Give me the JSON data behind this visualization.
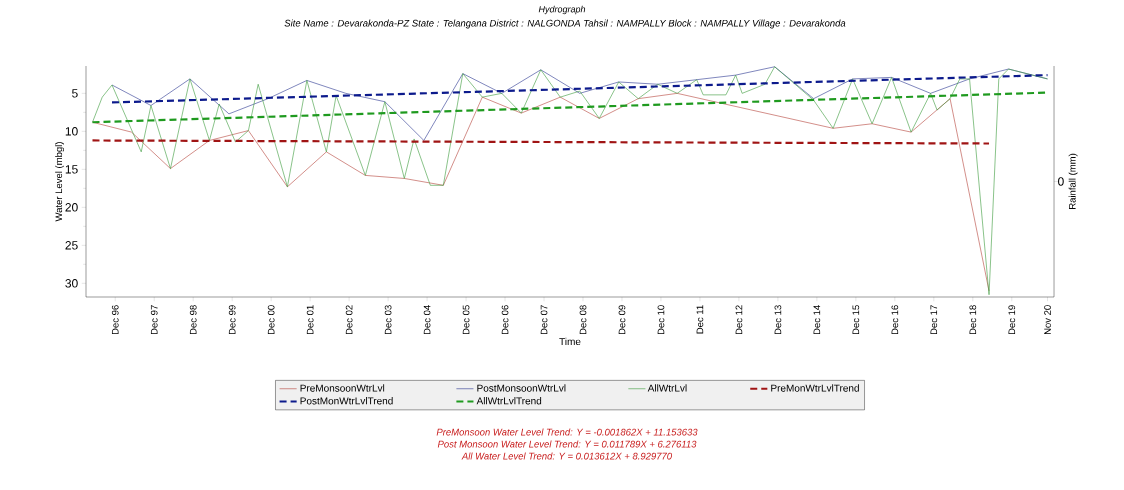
{
  "chart_data": {
    "type": "line",
    "title": "Hydrograph",
    "subtitle": "Site Name : Devarakonda-PZ  State : Telangana District : NALGONDA  Tahsil : NAMPALLY  Block : NAMPALLY Village : Devarakonda",
    "xlabel": "Time",
    "ylabel": "Water Level (mbgl)",
    "y2label": "Rainfall (mm)",
    "xlim": [
      "1996-03",
      "2021-01"
    ],
    "xticks": [
      {
        "value": "1996-12",
        "label": "Dec 96"
      },
      {
        "value": "1997-12",
        "label": "Dec 97"
      },
      {
        "value": "1998-12",
        "label": "Dec 98"
      },
      {
        "value": "1999-12",
        "label": "Dec 99"
      },
      {
        "value": "2000-12",
        "label": "Dec 00"
      },
      {
        "value": "2001-12",
        "label": "Dec 01"
      },
      {
        "value": "2002-12",
        "label": "Dec 02"
      },
      {
        "value": "2003-12",
        "label": "Dec 03"
      },
      {
        "value": "2004-12",
        "label": "Dec 04"
      },
      {
        "value": "2005-12",
        "label": "Dec 05"
      },
      {
        "value": "2006-12",
        "label": "Dec 06"
      },
      {
        "value": "2007-12",
        "label": "Dec 07"
      },
      {
        "value": "2008-12",
        "label": "Dec 08"
      },
      {
        "value": "2009-12",
        "label": "Dec 09"
      },
      {
        "value": "2010-12",
        "label": "Dec 10"
      },
      {
        "value": "2011-12",
        "label": "Dec 11"
      },
      {
        "value": "2012-12",
        "label": "Dec 12"
      },
      {
        "value": "2013-12",
        "label": "Dec 13"
      },
      {
        "value": "2014-12",
        "label": "Dec 14"
      },
      {
        "value": "2015-12",
        "label": "Dec 15"
      },
      {
        "value": "2016-12",
        "label": "Dec 16"
      },
      {
        "value": "2017-12",
        "label": "Dec 17"
      },
      {
        "value": "2018-12",
        "label": "Dec 18"
      },
      {
        "value": "2019-12",
        "label": "Dec 19"
      },
      {
        "value": "2020-11",
        "label": "Nov 20"
      }
    ],
    "ylim": [
      31.8,
      1.4
    ],
    "yticks": [
      5,
      10,
      15,
      20,
      25,
      30
    ],
    "legend": "bottom",
    "grid": false,
    "marker": "none",
    "series": [
      {
        "name": "PreMonsoonWtrLvl",
        "color": "#b5433a",
        "line_style": "solid",
        "x": [
          "1996-05",
          "1997-05",
          "1998-05",
          "1999-05",
          "2000-05",
          "2001-05",
          "2002-05",
          "2003-05",
          "2004-05",
          "2005-05",
          "2006-05",
          "2007-05",
          "2008-05",
          "2009-05",
          "2010-05",
          "2011-05",
          "2015-05",
          "2016-05",
          "2017-05",
          "2018-05",
          "2019-05"
        ],
        "values": [
          8.8,
          10.1,
          14.9,
          11.2,
          9.9,
          17.3,
          12.7,
          15.8,
          16.2,
          17.1,
          5.5,
          7.6,
          5.5,
          8.3,
          5.7,
          5.0,
          9.6,
          9.0,
          10.1,
          5.7,
          31.0
        ]
      },
      {
        "name": "PostMonsoonWtrLvl",
        "color": "#2a3590",
        "line_style": "solid",
        "x": [
          "1996-11",
          "1997-11",
          "1998-11",
          "1999-11",
          "2000-11",
          "2001-11",
          "2002-11",
          "2003-11",
          "2004-11",
          "2005-11",
          "2006-11",
          "2007-11",
          "2008-11",
          "2009-11",
          "2010-11",
          "2011-11",
          "2012-11",
          "2013-11",
          "2014-11",
          "2015-11",
          "2016-11",
          "2017-11",
          "2018-11",
          "2019-11",
          "2020-11"
        ],
        "values": [
          3.9,
          6.6,
          3.1,
          7.7,
          5.7,
          3.3,
          5.0,
          6.1,
          11.2,
          2.4,
          5.0,
          1.9,
          5.0,
          3.5,
          3.8,
          3.2,
          2.6,
          1.5,
          5.7,
          3.1,
          2.9,
          5.0,
          3.1,
          1.8,
          3.1
        ]
      },
      {
        "name": "AllWtrLvl",
        "color": "#3a9a3a",
        "line_style": "solid",
        "x": [
          "1996-05",
          "1996-08",
          "1996-11",
          "1997-08",
          "1997-11",
          "1998-05",
          "1998-11",
          "1999-05",
          "1999-08",
          "2000-01",
          "2000-05",
          "2000-08",
          "2001-05",
          "2001-11",
          "2002-05",
          "2002-08",
          "2003-05",
          "2003-11",
          "2004-05",
          "2004-08",
          "2005-01",
          "2005-05",
          "2005-11",
          "2006-05",
          "2006-11",
          "2007-05",
          "2007-11",
          "2008-05",
          "2008-11",
          "2009-05",
          "2009-11",
          "2010-05",
          "2010-11",
          "2011-05",
          "2011-11",
          "2012-01",
          "2012-08",
          "2012-11",
          "2013-01",
          "2013-08",
          "2013-11",
          "2014-11",
          "2015-05",
          "2015-11",
          "2016-05",
          "2016-11",
          "2017-05",
          "2017-11",
          "2018-01",
          "2018-05",
          "2018-08",
          "2018-11",
          "2019-05",
          "2019-08",
          "2019-11",
          "2020-11"
        ],
        "values": [
          8.8,
          5.5,
          3.9,
          12.7,
          6.6,
          14.9,
          3.1,
          11.2,
          6.4,
          11.4,
          9.9,
          3.8,
          17.3,
          3.3,
          12.7,
          5.3,
          15.8,
          6.1,
          16.2,
          11.0,
          17.1,
          17.1,
          2.4,
          5.5,
          5.0,
          7.6,
          1.9,
          5.5,
          4.7,
          8.3,
          3.5,
          5.7,
          3.8,
          5.0,
          3.2,
          5.2,
          5.2,
          2.6,
          5.0,
          3.8,
          1.5,
          5.9,
          9.6,
          3.1,
          9.0,
          2.9,
          10.1,
          5.0,
          7.2,
          5.7,
          3.1,
          3.1,
          31.5,
          3.1,
          1.8,
          3.1
        ]
      },
      {
        "name": "PreMonWtrLvlTrend",
        "color": "#a01414",
        "line_style": "dashed",
        "x": [
          "1996-05",
          "2019-05"
        ],
        "values": [
          11.2,
          11.6
        ]
      },
      {
        "name": "PostMonWtrLvlTrend",
        "color": "#0c1a8c",
        "line_style": "dashed",
        "x": [
          "1996-11",
          "2020-11"
        ],
        "values": [
          6.2,
          2.6
        ]
      },
      {
        "name": "AllWtrLvlTrend",
        "color": "#1f9a1f",
        "line_style": "dashed",
        "x": [
          "1996-05",
          "2020-11"
        ],
        "values": [
          8.8,
          4.9
        ]
      }
    ],
    "annotations": [
      "0",
      "PreMonsoon Water Level Trend: Y = -0.001862X + 11.153633",
      "Post Monsoon Water Level Trend: Y = 0.011789X + 6.276113",
      "All Water Level Trend: Y = 0.013612X + 8.929770"
    ]
  }
}
